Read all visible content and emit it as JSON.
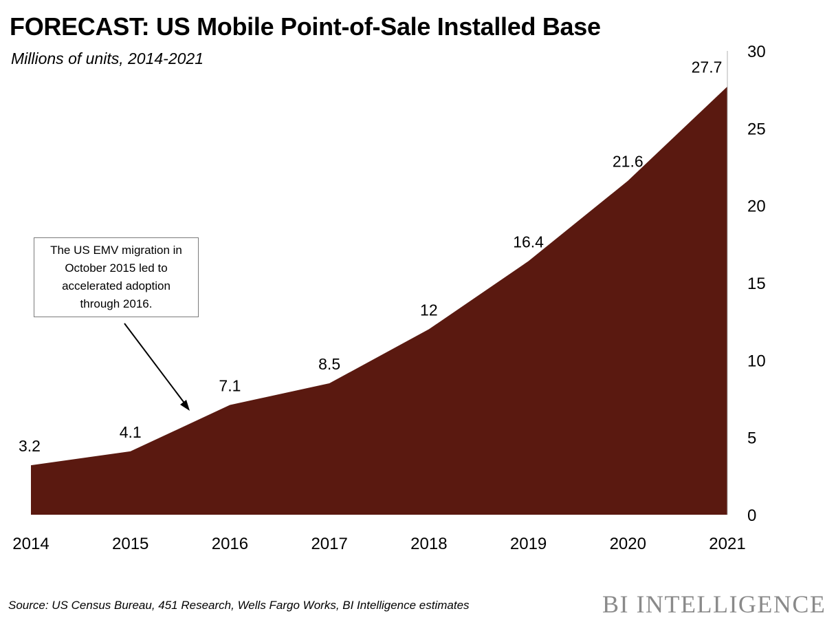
{
  "title": "FORECAST: US Mobile Point-of-Sale Installed Base",
  "subtitle": "Millions of units, 2014-2021",
  "annotation": "The US EMV migration in October 2015 led to accelerated adoption through 2016.",
  "source": "Source: US Census Bureau, 451 Research, Wells Fargo Works, BI Intelligence estimates",
  "brand": "BI INTELLIGENCE",
  "colors": {
    "area": "#5a1910",
    "axis": "#b0b0b0",
    "arrow": "#000000"
  },
  "chart_data": {
    "type": "area",
    "categories": [
      "2014",
      "2015",
      "2016",
      "2017",
      "2018",
      "2019",
      "2020",
      "2021"
    ],
    "values": [
      3.2,
      4.1,
      7.1,
      8.5,
      12,
      16.4,
      21.6,
      27.7
    ],
    "data_labels": [
      "3.2",
      "4.1",
      "7.1",
      "8.5",
      "12",
      "16.4",
      "21.6",
      "27.7"
    ],
    "title": "FORECAST: US Mobile Point-of-Sale Installed Base",
    "subtitle": "Millions of units, 2014-2021",
    "ylim": [
      0,
      30
    ],
    "yticks": [
      "0",
      "5",
      "10",
      "15",
      "20",
      "25",
      "30"
    ],
    "y_axis_side": "right",
    "grid": false,
    "legend": "none"
  }
}
